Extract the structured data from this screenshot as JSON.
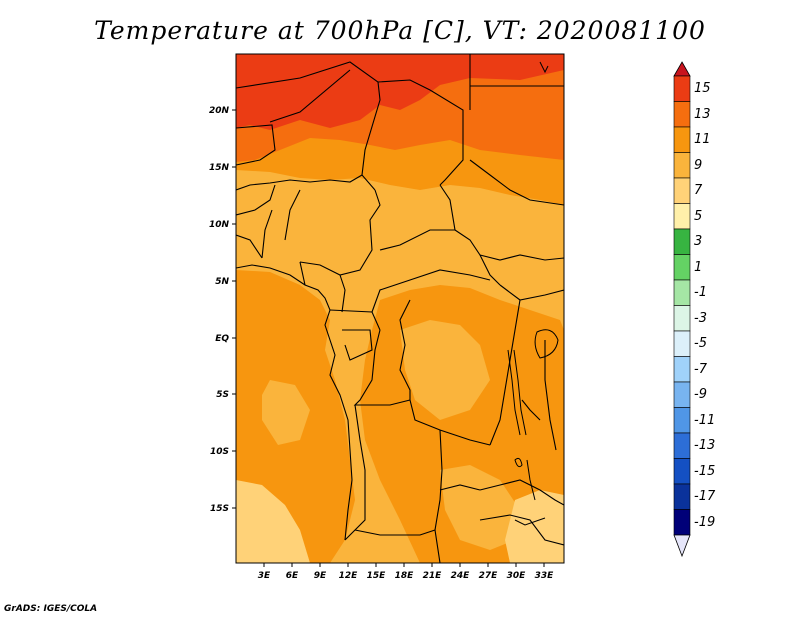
{
  "title": "Temperature at 700hPa [C], VT: 2020081100",
  "footer": "GrADS: IGES/COLA",
  "map": {
    "lon_ticks": [
      "3E",
      "6E",
      "9E",
      "12E",
      "15E",
      "18E",
      "21E",
      "24E",
      "27E",
      "30E",
      "33E"
    ],
    "lat_ticks": [
      "20N",
      "15N",
      "10N",
      "5N",
      "EQ",
      "5S",
      "10S",
      "15S"
    ]
  },
  "colorbar": {
    "labels": [
      "15",
      "13",
      "11",
      "9",
      "7",
      "5",
      "3",
      "1",
      "-1",
      "-3",
      "-5",
      "-7",
      "-9",
      "-11",
      "-13",
      "-15",
      "-17",
      "-19"
    ],
    "colors": [
      "#c8141e",
      "#eb3c14",
      "#f56e0f",
      "#f7960f",
      "#fab43c",
      "#ffd278",
      "#fff0aa",
      "#37b441",
      "#64d264",
      "#a5e6a5",
      "#dcf5e6",
      "#dcf0fa",
      "#a0d2fa",
      "#78b4f0",
      "#5096e6",
      "#2d6ed7",
      "#1450c3",
      "#0a329b",
      "#000078",
      "#e6e6fa"
    ]
  }
}
